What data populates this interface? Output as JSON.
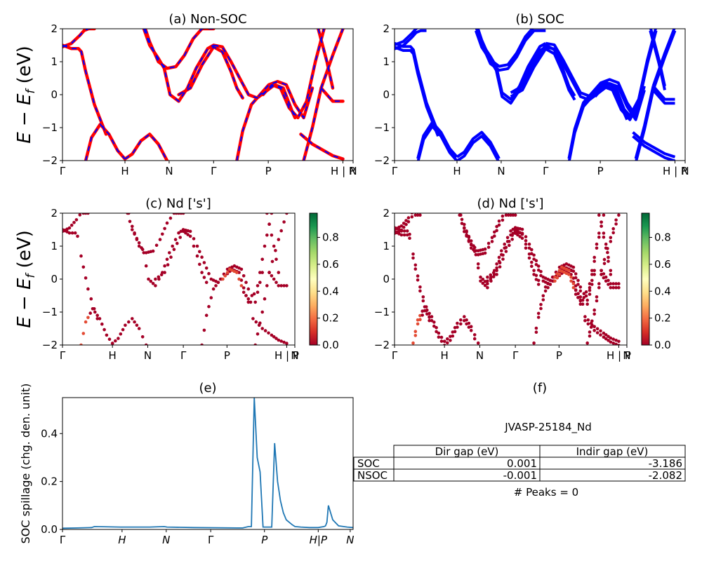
{
  "chart_data": [
    {
      "id": "a",
      "type": "line",
      "title": "(a) Non-SOC",
      "ylabel": "E - E_f (eV)",
      "ylim": [
        -2,
        2
      ],
      "yticks": [
        "2",
        "1",
        "0",
        "−1",
        "−2"
      ],
      "kpoints": [
        "Γ",
        "H",
        "N",
        "Γ",
        "P",
        "H | P",
        "N"
      ],
      "kpos": [
        0,
        0.215,
        0.367,
        0.52,
        0.708,
        0.965,
        1.0
      ],
      "series": [
        {
          "color": "#ff0000",
          "style": "solid",
          "bands": [
            {
              "x": [
                0,
                0.03,
                0.06,
                0.075,
                0.09,
                0.11
              ],
              "y": [
                1.45,
                1.55,
                1.8,
                1.95,
                2.0,
                2.0
              ]
            },
            {
              "x": [
                0,
                0.03,
                0.055,
                0.065,
                0.08,
                0.11,
                0.15
              ],
              "y": [
                1.5,
                1.4,
                1.4,
                1.3,
                0.7,
                -0.3,
                -1.2
              ]
            },
            {
              "x": [
                0.08,
                0.1,
                0.13,
                0.16,
                0.19,
                0.215
              ],
              "y": [
                -2.0,
                -1.3,
                -0.9,
                -1.2,
                -1.7,
                -1.95
              ]
            },
            {
              "x": [
                0.215,
                0.24,
                0.27,
                0.3,
                0.33,
                0.36
              ],
              "y": [
                -1.95,
                -1.8,
                -1.4,
                -1.2,
                -1.5,
                -2.0
              ]
            },
            {
              "x": [
                0.28,
                0.3,
                0.33,
                0.35,
                0.37,
                0.4,
                0.43,
                0.46,
                0.5,
                0.52
              ],
              "y": [
                2.0,
                1.5,
                1.1,
                0.8,
                0.0,
                -0.2,
                0.2,
                0.8,
                1.4,
                1.5
              ]
            },
            {
              "x": [
                0.285,
                0.3,
                0.33,
                0.36,
                0.39,
                0.42,
                0.45,
                0.48,
                0.5,
                0.52
              ],
              "y": [
                2.0,
                1.6,
                1.0,
                0.8,
                0.85,
                1.2,
                1.7,
                2.0,
                2.0,
                2.0
              ]
            },
            {
              "x": [
                0.4,
                0.44,
                0.48,
                0.52,
                0.55,
                0.58,
                0.6,
                0.62
              ],
              "y": [
                0.0,
                0.2,
                0.9,
                1.45,
                1.3,
                0.7,
                0.2,
                -0.1
              ]
            },
            {
              "x": [
                0.52,
                0.55,
                0.58,
                0.61,
                0.64,
                0.67,
                0.7,
                0.73,
                0.76,
                0.79,
                0.8
              ],
              "y": [
                1.5,
                1.45,
                1.0,
                0.5,
                0.0,
                -0.1,
                0.1,
                0.3,
                0.2,
                -0.5,
                -0.7
              ]
            },
            {
              "x": [
                0.6,
                0.62,
                0.65,
                0.68,
                0.71,
                0.74,
                0.77,
                0.8,
                0.83,
                0.86
              ],
              "y": [
                -2.0,
                -1.1,
                -0.3,
                0.0,
                0.3,
                0.4,
                0.3,
                -0.3,
                -0.7,
                0.2
              ]
            },
            {
              "x": [
                0.69,
                0.72,
                0.75,
                0.78,
                0.81,
                0.84,
                0.87,
                0.9
              ],
              "y": [
                0.0,
                0.3,
                0.2,
                -0.4,
                -0.7,
                -0.2,
                1.0,
                2.0
              ]
            },
            {
              "x": [
                0.82,
                0.86,
                0.9,
                0.93,
                0.965
              ],
              "y": [
                -1.2,
                -1.5,
                -1.7,
                -1.85,
                -1.95
              ]
            },
            {
              "x": [
                0.83,
                0.86,
                0.89
              ],
              "y": [
                -2.0,
                -1.0,
                0.2
              ]
            },
            {
              "x": [
                0.88,
                0.91,
                0.93
              ],
              "y": [
                2.0,
                1.0,
                0.2
              ]
            },
            {
              "x": [
                0.89,
                0.91,
                0.93,
                0.965
              ],
              "y": [
                0.2,
                0.0,
                -0.2,
                -0.2
              ]
            },
            {
              "x": [
                0.89,
                0.93,
                0.965
              ],
              "y": [
                0.2,
                1.2,
                2.0
              ]
            }
          ]
        },
        {
          "color": "#0000ff",
          "style": "dashed",
          "same_as_previous": true
        }
      ]
    },
    {
      "id": "b",
      "type": "line",
      "title": "(b) SOC",
      "ylim": [
        -2,
        2
      ],
      "yticks": [
        "2",
        "1",
        "0",
        "−1",
        "−2"
      ],
      "kpoints": [
        "Γ",
        "H",
        "N",
        "Γ",
        "P",
        "H | P",
        "N"
      ],
      "color": "#0000ff"
    },
    {
      "id": "c",
      "type": "scatter",
      "title": "(c)  Nd ['s']",
      "ylabel": "E - E_f (eV)",
      "ylim": [
        -2,
        2
      ],
      "yticks": [
        "2",
        "1",
        "0",
        "−1",
        "−2"
      ],
      "kpoints": [
        "Γ",
        "H",
        "N",
        "Γ",
        "P",
        "H | P",
        "N"
      ],
      "colorbar": {
        "ticks": [
          "0.8",
          "0.6",
          "0.4",
          "0.2",
          "0.0"
        ],
        "range": [
          0,
          1
        ],
        "cmap": "RdYlGn"
      }
    },
    {
      "id": "d",
      "type": "scatter",
      "title": "(d) Nd ['s']",
      "ylim": [
        -2,
        2
      ],
      "yticks": [
        "2",
        "1",
        "0",
        "−1",
        "−2"
      ],
      "kpoints": [
        "Γ",
        "H",
        "N",
        "Γ",
        "P",
        "H | P",
        "N"
      ],
      "colorbar": {
        "ticks": [
          "0.8",
          "0.6",
          "0.4",
          "0.2",
          "0.0"
        ],
        "range": [
          0,
          1
        ],
        "cmap": "RdYlGn"
      }
    },
    {
      "id": "e",
      "type": "line",
      "title": "(e)",
      "ylabel": "SOC spillage (chg. den. unit)",
      "ylim": [
        0,
        0.55
      ],
      "yticks": [
        "0.4",
        "0.2",
        "0.0"
      ],
      "kpoints": [
        "Γ",
        "H",
        "N",
        "Γ",
        "P",
        "H|P",
        "N"
      ],
      "color": "#1f77b4",
      "x": [
        0,
        0.05,
        0.1,
        0.11,
        0.2,
        0.3,
        0.35,
        0.36,
        0.45,
        0.6,
        0.62,
        0.64,
        0.65,
        0.66,
        0.67,
        0.68,
        0.69,
        0.7,
        0.71,
        0.72,
        0.73,
        0.74,
        0.75,
        0.76,
        0.77,
        0.78,
        0.79,
        0.8,
        0.82,
        0.85,
        0.88,
        0.9,
        0.905,
        0.91,
        0.915,
        0.92,
        0.93,
        0.95,
        0.98,
        1.0
      ],
      "y": [
        0.005,
        0.006,
        0.008,
        0.012,
        0.01,
        0.01,
        0.012,
        0.01,
        0.008,
        0.006,
        0.006,
        0.012,
        0.012,
        0.55,
        0.3,
        0.24,
        0.01,
        0.01,
        0.01,
        0.01,
        0.36,
        0.2,
        0.12,
        0.07,
        0.04,
        0.03,
        0.02,
        0.012,
        0.01,
        0.008,
        0.008,
        0.012,
        0.015,
        0.03,
        0.1,
        0.08,
        0.04,
        0.015,
        0.01,
        0.008
      ]
    }
  ],
  "table": {
    "title": "(f)",
    "caption": "JVASP-25184_Nd",
    "columns": [
      "Dir gap (eV)",
      "Indir gap (eV)"
    ],
    "rows": [
      {
        "label": "SOC",
        "dir": "0.001",
        "indir": "-3.186"
      },
      {
        "label": "NSOC",
        "dir": "-0.001",
        "indir": "-2.082"
      }
    ],
    "footer": "# Peaks = 0"
  }
}
